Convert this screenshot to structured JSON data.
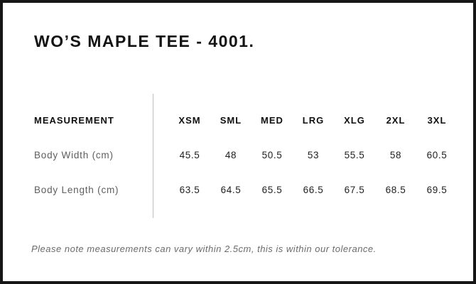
{
  "page": {
    "title": "WO’S MAPLE TEE - 4001."
  },
  "size_chart": {
    "measurement_header": "MEASUREMENT",
    "size_headers": [
      "XSM",
      "SML",
      "MED",
      "LRG",
      "XLG",
      "2XL",
      "3XL"
    ],
    "rows": [
      {
        "label": "Body Width (cm)",
        "values": [
          "45.5",
          "48",
          "50.5",
          "53",
          "55.5",
          "58",
          "60.5"
        ]
      },
      {
        "label": "Body Length (cm)",
        "values": [
          "63.5",
          "64.5",
          "65.5",
          "66.5",
          "67.5",
          "68.5",
          "69.5"
        ]
      }
    ]
  },
  "footer": {
    "note": "Please note measurements can vary within 2.5cm, this is within our tolerance."
  },
  "colors": {
    "border": "#161616",
    "heading": "#131313",
    "header_text": "#0f0f0f",
    "value_text": "#1e1e1e",
    "label_gray": "#5e5e5e",
    "note_gray": "#6b6b6b",
    "divider_gray": "#bfbfbf",
    "background": "#ffffff"
  }
}
